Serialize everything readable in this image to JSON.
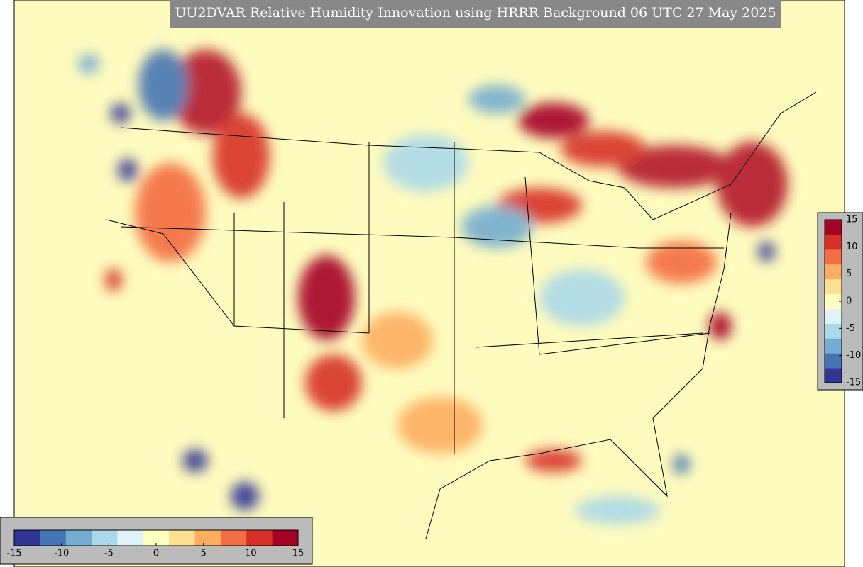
{
  "title": "UU2DVAR Relative Humidity Innovation using HRRR Background 06 UTC 27 May 2025",
  "colorbar": {
    "range": [
      -15,
      15
    ],
    "ticks": [
      -15,
      -10,
      -5,
      0,
      5,
      10,
      15
    ],
    "colors": [
      "#313695",
      "#4575b4",
      "#74add1",
      "#abd9e9",
      "#e0f3f8",
      "#ffffbf",
      "#fee090",
      "#fdae61",
      "#f46d43",
      "#d73027",
      "#a50026"
    ]
  }
}
